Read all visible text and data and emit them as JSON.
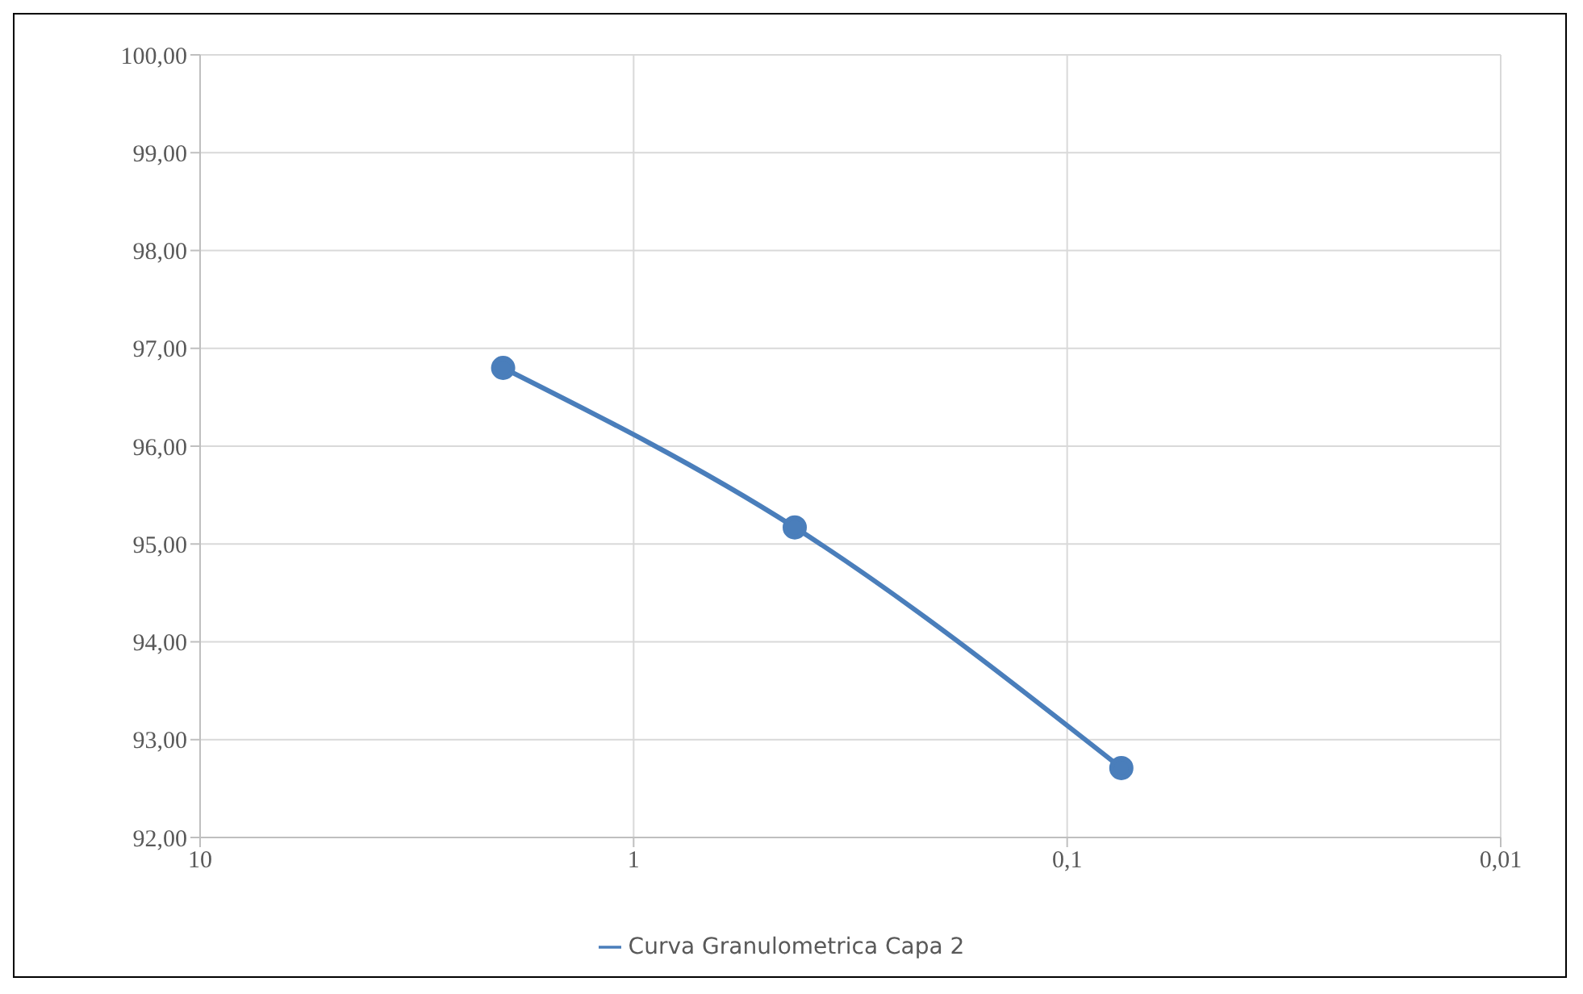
{
  "chart_data": {
    "type": "line",
    "x": [
      2,
      0.425,
      0.075
    ],
    "series": [
      {
        "name": "Curva Granulometrica Capa 2",
        "color": "#4a7ebb",
        "values": [
          96.8,
          95.17,
          92.71
        ]
      }
    ],
    "xlim": [
      10,
      0.01
    ],
    "xticks": [
      10,
      1,
      {
        "value": 0.1,
        "label": "0,1"
      },
      {
        "value": 0.01,
        "label": "0,01"
      }
    ],
    "ylim": [
      92,
      100
    ],
    "yticks": [
      {
        "value": 92,
        "label": "92,00"
      },
      {
        "value": 93,
        "label": "93,00"
      },
      {
        "value": 94,
        "label": "94,00"
      },
      {
        "value": 95,
        "label": "95,00"
      },
      {
        "value": 96,
        "label": "96,00"
      },
      {
        "value": 97,
        "label": "97,00"
      },
      {
        "value": 98,
        "label": "98,00"
      },
      {
        "value": 99,
        "label": "99,00"
      },
      {
        "value": 100,
        "label": "100,00"
      }
    ],
    "log": "x",
    "grid": true,
    "legend": "bottom",
    "marker": "circle",
    "line_style": "solid"
  }
}
